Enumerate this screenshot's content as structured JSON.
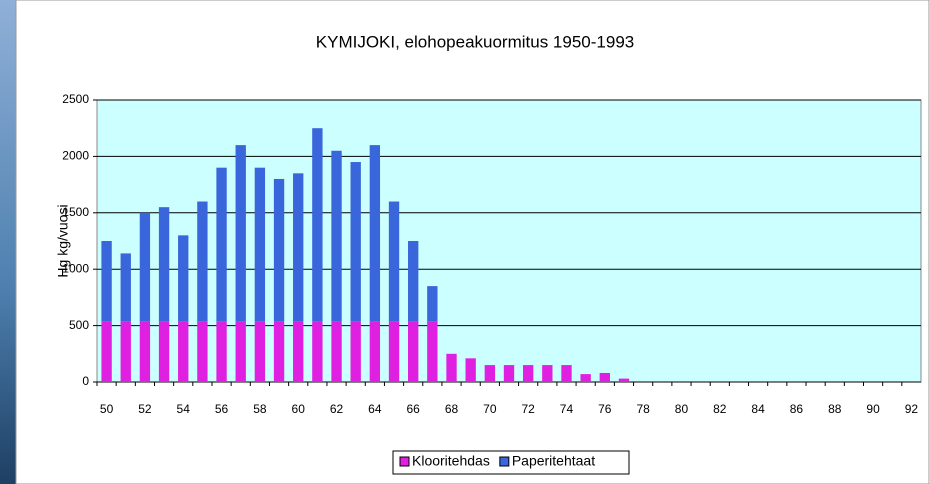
{
  "chart_data": {
    "type": "stacked-bar",
    "title": "KYMIJOKI, elohopeakuormitus 1950-1993",
    "y_label": "Hg kg/vuosi",
    "categories": [
      "50",
      null,
      "52",
      null,
      "54",
      null,
      "56",
      null,
      "58",
      null,
      "60",
      null,
      "62",
      null,
      "64",
      null,
      "66",
      null,
      "68",
      null,
      "70",
      null,
      "72",
      null,
      "74",
      null,
      "76",
      null,
      "78",
      null,
      "80",
      null,
      "82",
      null,
      "84",
      null,
      "86",
      null,
      "88",
      null,
      "90",
      null,
      "92"
    ],
    "series": [
      {
        "name": "Klooritehdas",
        "color": "#e020e0",
        "values": [
          540,
          540,
          540,
          540,
          540,
          540,
          540,
          540,
          540,
          540,
          540,
          540,
          540,
          540,
          540,
          540,
          540,
          540,
          250,
          210,
          150,
          150,
          150,
          150,
          150,
          70,
          80,
          30,
          0,
          0,
          0,
          0,
          0,
          0,
          0,
          0,
          0,
          0,
          0,
          0,
          0,
          0,
          0
        ]
      },
      {
        "name": "Paperitehtaat",
        "color": "#3a66dc",
        "values": [
          710,
          600,
          960,
          1010,
          760,
          1060,
          1360,
          1560,
          1360,
          1260,
          1310,
          1710,
          1510,
          1410,
          1560,
          1060,
          710,
          310,
          0,
          0,
          0,
          0,
          0,
          0,
          0,
          0,
          0,
          0,
          0,
          0,
          0,
          0,
          0,
          0,
          0,
          0,
          0,
          0,
          0,
          0,
          0,
          0,
          0
        ]
      }
    ],
    "ylim": [
      0,
      2500
    ],
    "yticks": [
      0,
      500,
      1000,
      1500,
      2000,
      2500
    ],
    "grid": true,
    "legend": "bottom"
  }
}
